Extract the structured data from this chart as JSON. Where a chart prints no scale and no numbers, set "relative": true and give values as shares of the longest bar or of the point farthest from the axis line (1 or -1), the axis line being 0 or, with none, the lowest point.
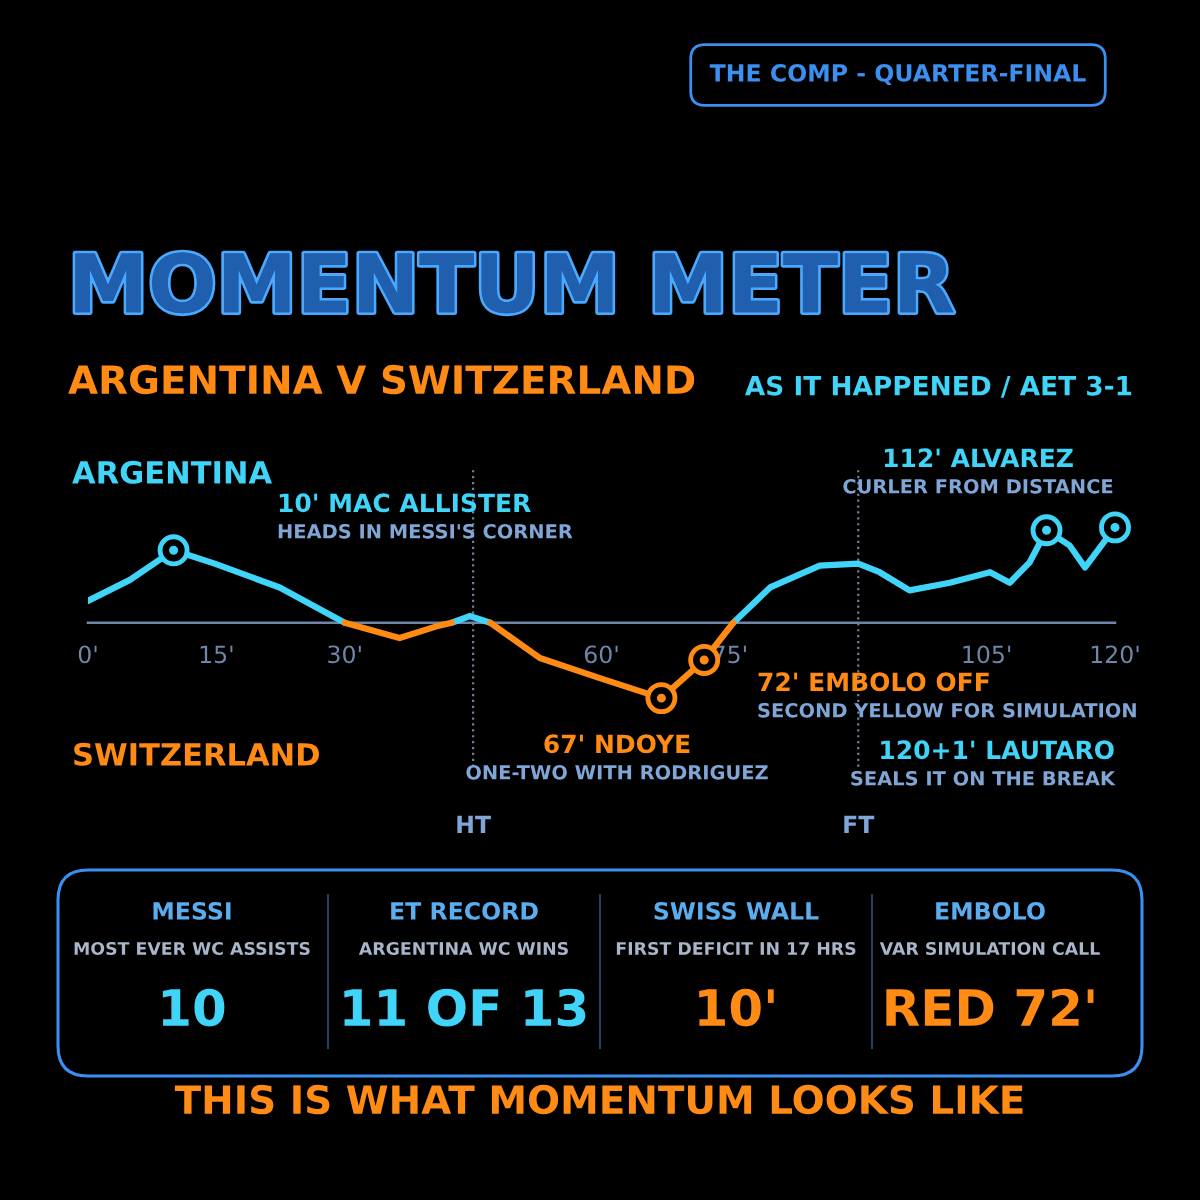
{
  "chart_data": {
    "type": "line",
    "title": "MOMENTUM METER",
    "subtitle": "ARGENTINA V SWITZERLAND",
    "relative": true,
    "grid": false,
    "xlim": [
      0,
      120
    ],
    "xticks": [
      {
        "value": 0,
        "label": "0'"
      },
      {
        "value": 15,
        "label": "15'"
      },
      {
        "value": 30,
        "label": "30'"
      },
      {
        "value": 60,
        "label": "60'"
      },
      {
        "value": 75,
        "label": "75'"
      },
      {
        "value": 105,
        "label": "105'"
      },
      {
        "value": 120,
        "label": "120'"
      }
    ],
    "series": [
      {
        "name": "ARGENTINA",
        "color": "#3fd4f8",
        "x": [
          0,
          4.9,
          10,
          14.8,
          22.4,
          30,
          36.4,
          42.5,
          44.6,
          47,
          60,
          75.4,
          79.7,
          85.5,
          90,
          92.5,
          96,
          100.7,
          105.4,
          107.7,
          110,
          112,
          114.7,
          116.5,
          120
        ],
        "values": [
          0.23,
          0.45,
          0.76,
          0.62,
          0.37,
          0,
          null,
          0,
          0.07,
          0,
          null,
          0,
          0.37,
          0.6,
          0.62,
          0.53,
          0.34,
          0.42,
          0.53,
          0.42,
          0.63,
          0.97,
          0.81,
          0.58,
          1.0
        ]
      },
      {
        "name": "SWITZERLAND",
        "color": "#ff8a14",
        "x": [
          30,
          36.4,
          41,
          42.5,
          44.6,
          47,
          52.8,
          59.8,
          67,
          72,
          75.4
        ],
        "values": [
          0,
          -0.16,
          -0.03,
          0,
          null,
          0,
          -0.37,
          -0.58,
          -0.79,
          -0.39,
          0
        ]
      },
      {
        "type": "scatter",
        "marker": "circle",
        "x": [
          10,
          67,
          72,
          112,
          120
        ],
        "values": [
          0.76,
          -0.79,
          -0.39,
          0.97,
          1.0
        ],
        "colors": [
          "#3fd4f8",
          "#ff8a14",
          "#ff8a14",
          "#3fd4f8",
          "#3fd4f8"
        ]
      }
    ],
    "ref_lines": [
      {
        "axis": "x",
        "value": 45,
        "label": "HT",
        "color": "#6f7f96",
        "line_style": "dotted"
      },
      {
        "axis": "x",
        "value": 90,
        "label": "FT",
        "color": "#6f7f96",
        "line_style": "dotted"
      }
    ],
    "annotations": [
      "THE COMP - QUARTER-FINAL",
      "AS IT HAPPENED / AET 3-1",
      "10' MAC ALLISTER\nHEADS IN MESSI'S CORNER",
      "67' NDOYE\nONE-TWO WITH RODRIGUEZ",
      "72' EMBOLO OFF\nSECOND YELLOW FOR SIMULATION",
      "112' ALVAREZ\nCURLER FROM DISTANCE",
      "120+1' LAUTARO\nSEALS IT ON THE BREAK",
      "MESSI",
      "MOST EVER WC ASSISTS",
      "10",
      "ET RECORD",
      "ARGENTINA WC WINS",
      "11 OF 13",
      "SWISS WALL",
      "FIRST DEFICIT IN 17 HRS",
      "10'",
      "EMBOLO",
      "VAR SIMULATION CALL",
      "RED 72'",
      "THIS IS WHAT MOMENTUM LOOKS LIKE"
    ]
  }
}
